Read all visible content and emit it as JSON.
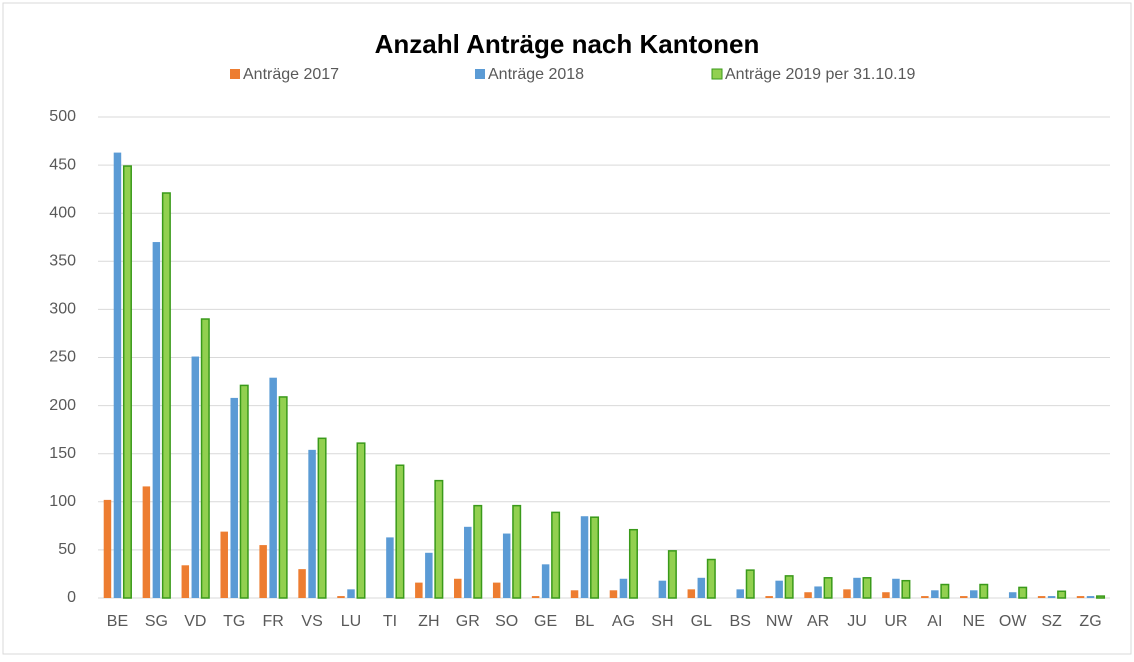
{
  "chart_data": {
    "type": "bar",
    "title": "Anzahl Anträge nach Kantonen",
    "categories": [
      "BE",
      "SG",
      "VD",
      "TG",
      "FR",
      "VS",
      "LU",
      "TI",
      "ZH",
      "GR",
      "SO",
      "GE",
      "BL",
      "AG",
      "SH",
      "GL",
      "BS",
      "NW",
      "AR",
      "JU",
      "UR",
      "AI",
      "NE",
      "OW",
      "SZ",
      "ZG"
    ],
    "series": [
      {
        "name": "Anträge 2017",
        "color": "#ed7d31",
        "values": [
          102,
          116,
          34,
          69,
          55,
          30,
          2,
          0,
          16,
          20,
          16,
          2,
          8,
          8,
          0,
          9,
          0,
          2,
          6,
          9,
          6,
          2,
          2,
          0,
          2,
          2
        ]
      },
      {
        "name": "Anträge 2018",
        "color": "#5b9bd5",
        "values": [
          463,
          370,
          251,
          208,
          229,
          154,
          9,
          63,
          47,
          74,
          67,
          35,
          85,
          20,
          18,
          21,
          9,
          18,
          12,
          21,
          20,
          8,
          8,
          6,
          2,
          2
        ]
      },
      {
        "name": "Anträge 2019 per 31.10.19",
        "color": "#92d050",
        "values": [
          449,
          421,
          290,
          221,
          209,
          166,
          161,
          138,
          122,
          96,
          96,
          89,
          84,
          71,
          49,
          40,
          29,
          23,
          21,
          21,
          18,
          14,
          14,
          11,
          7,
          2
        ]
      }
    ],
    "ylim": [
      0,
      500
    ],
    "yticks": [
      0,
      50,
      100,
      150,
      200,
      250,
      300,
      350,
      400,
      450,
      500
    ],
    "grid": true
  }
}
